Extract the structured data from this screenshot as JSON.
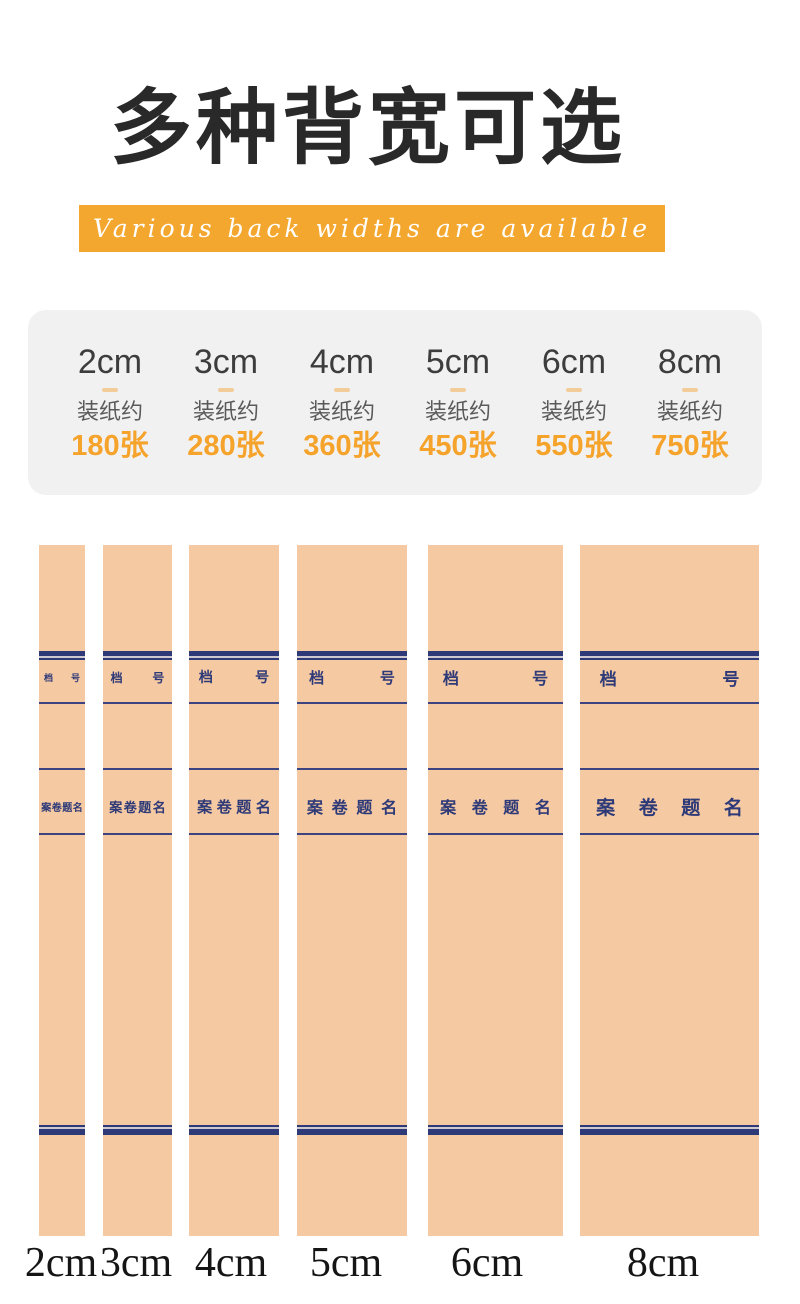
{
  "header": {
    "title": "多种背宽可选",
    "subtitle": "Various back widths are available"
  },
  "colors": {
    "banner_orange": "#f4a72e",
    "capacity_orange": "#f5a32b",
    "spine_navy": "#2e3a78",
    "spine_peach": "#f5c9a2",
    "card_bg": "#f1f1f2",
    "title_black": "#292929"
  },
  "capacity_card": {
    "items": [
      {
        "size": "2cm",
        "note": "装纸约",
        "capacity": "180张"
      },
      {
        "size": "3cm",
        "note": "装纸约",
        "capacity": "280张"
      },
      {
        "size": "4cm",
        "note": "装纸约",
        "capacity": "360张"
      },
      {
        "size": "5cm",
        "note": "装纸约",
        "capacity": "450张"
      },
      {
        "size": "6cm",
        "note": "装纸约",
        "capacity": "550张"
      },
      {
        "size": "8cm",
        "note": "装纸约",
        "capacity": "750张"
      }
    ]
  },
  "spines": {
    "file_no_chars": [
      "档",
      "号"
    ],
    "title_chars": [
      "案",
      "卷",
      "题",
      "名"
    ],
    "bottom_labels": [
      "2cm",
      "3cm",
      "4cm",
      "5cm",
      "6cm",
      "8cm"
    ]
  }
}
